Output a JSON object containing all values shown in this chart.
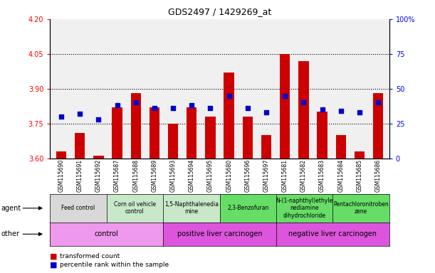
{
  "title": "GDS2497 / 1429269_at",
  "samples": [
    "GSM115690",
    "GSM115691",
    "GSM115692",
    "GSM115687",
    "GSM115688",
    "GSM115689",
    "GSM115693",
    "GSM115694",
    "GSM115695",
    "GSM115680",
    "GSM115696",
    "GSM115697",
    "GSM115681",
    "GSM115682",
    "GSM115683",
    "GSM115684",
    "GSM115685",
    "GSM115686"
  ],
  "transformed_count": [
    3.63,
    3.71,
    3.61,
    3.82,
    3.88,
    3.82,
    3.75,
    3.82,
    3.78,
    3.97,
    3.78,
    3.7,
    4.05,
    4.02,
    3.8,
    3.7,
    3.63,
    3.88
  ],
  "percentile_rank": [
    30,
    32,
    28,
    38,
    40,
    36,
    36,
    38,
    36,
    45,
    36,
    33,
    45,
    40,
    35,
    34,
    33,
    40
  ],
  "ylim_left": [
    3.6,
    4.2
  ],
  "ylim_right": [
    0,
    100
  ],
  "yticks_left": [
    3.6,
    3.75,
    3.9,
    4.05,
    4.2
  ],
  "yticks_right": [
    0,
    25,
    50,
    75,
    100
  ],
  "hlines": [
    3.75,
    3.9,
    4.05
  ],
  "bar_color": "#cc0000",
  "dot_color": "#0000cc",
  "agent_groups": [
    {
      "label": "Feed control",
      "start": 0,
      "end": 3,
      "color": "#d8d8d8"
    },
    {
      "label": "Corn oil vehicle\ncontrol",
      "start": 3,
      "end": 6,
      "color": "#c8e8c8"
    },
    {
      "label": "1,5-Naphthalenedia\nmine",
      "start": 6,
      "end": 9,
      "color": "#c8e8c8"
    },
    {
      "label": "2,3-Benzofuran",
      "start": 9,
      "end": 12,
      "color": "#66dd66"
    },
    {
      "label": "N-(1-naphthyl)ethyle\nnediamine\ndihydrochloride",
      "start": 12,
      "end": 15,
      "color": "#66dd66"
    },
    {
      "label": "Pentachloronitroben\nzene",
      "start": 15,
      "end": 18,
      "color": "#66dd66"
    }
  ],
  "other_groups": [
    {
      "label": "control",
      "start": 0,
      "end": 6,
      "color": "#ee99ee"
    },
    {
      "label": "positive liver carcinogen",
      "start": 6,
      "end": 12,
      "color": "#dd55dd"
    },
    {
      "label": "negative liver carcinogen",
      "start": 12,
      "end": 18,
      "color": "#dd55dd"
    }
  ],
  "bg_color": "#ffffff"
}
